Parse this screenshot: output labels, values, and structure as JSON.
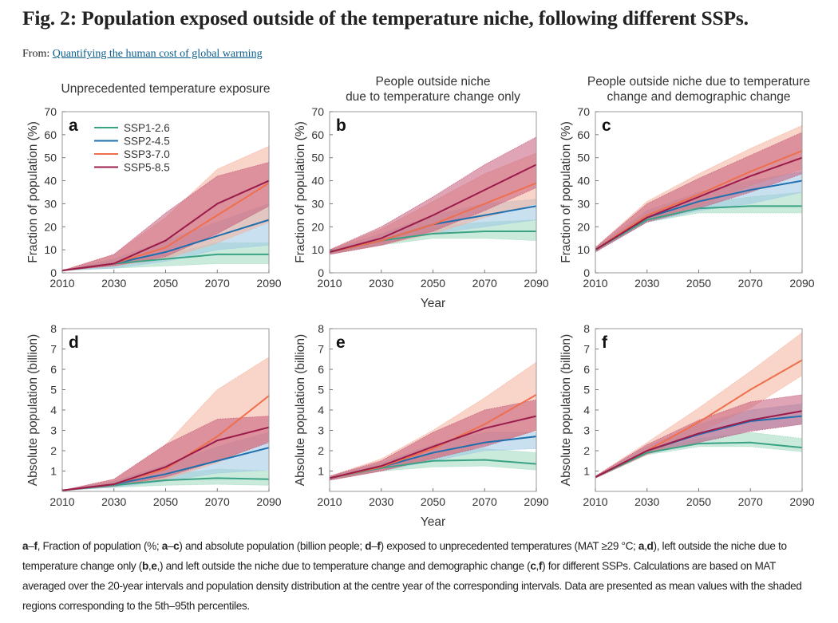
{
  "title": "Fig. 2: Population exposed outside of the temperature niche, following different SSPs.",
  "from_label": "From:",
  "from_link": "Quantifying the human cost of global warming",
  "colors": {
    "SSP1-2.6": {
      "line": "#3aa385",
      "band": "#9fd8bf"
    },
    "SSP2-4.5": {
      "line": "#1f6fae",
      "band": "#9cc6e4"
    },
    "SSP3-7.0": {
      "line": "#ef6f4d",
      "band": "#f4b09a"
    },
    "SSP5-8.5": {
      "line": "#9b1b4b",
      "band": "#c45a78"
    }
  },
  "chart_data": [
    {
      "panel": "a",
      "type": "line",
      "title": "Unprecedented temperature exposure",
      "ylabel": "Fraction of population (%)",
      "xlabel": "",
      "ylim": [
        0,
        70
      ],
      "yticks": [
        0,
        10,
        20,
        30,
        40,
        50,
        60,
        70
      ],
      "x": [
        2010,
        2030,
        2050,
        2070,
        2090
      ],
      "legend": "top-left",
      "series": [
        {
          "name": "SSP1-2.6",
          "values": [
            1,
            4,
            6,
            8,
            8
          ],
          "p5": [
            1,
            2,
            3,
            4,
            4
          ],
          "p95": [
            1,
            5,
            8,
            13,
            13
          ]
        },
        {
          "name": "SSP2-4.5",
          "values": [
            1,
            4,
            9,
            16,
            23
          ],
          "p5": [
            1,
            2,
            5,
            10,
            12
          ],
          "p95": [
            1,
            6,
            14,
            22,
            30
          ]
        },
        {
          "name": "SSP3-7.0",
          "values": [
            1,
            4,
            11,
            25,
            39
          ],
          "p5": [
            1,
            3,
            6,
            13,
            22
          ],
          "p95": [
            1,
            8,
            24,
            45,
            55
          ]
        },
        {
          "name": "SSP5-8.5",
          "values": [
            1,
            4,
            14,
            30,
            40
          ],
          "p5": [
            1,
            3,
            7,
            17,
            29
          ],
          "p95": [
            1,
            8,
            26,
            42,
            48
          ]
        }
      ]
    },
    {
      "panel": "b",
      "type": "line",
      "title": "People outside niche\ndue to temperature change only",
      "ylabel": "Fraction of population (%)",
      "xlabel": "Year",
      "ylim": [
        0,
        70
      ],
      "yticks": [
        0,
        10,
        20,
        30,
        40,
        50,
        60,
        70
      ],
      "x": [
        2010,
        2030,
        2050,
        2070,
        2090
      ],
      "series": [
        {
          "name": "SSP1-2.6",
          "values": [
            9,
            14,
            17,
            18,
            18
          ],
          "p5": [
            8,
            12,
            15,
            15,
            14
          ],
          "p95": [
            10,
            15,
            20,
            22,
            23
          ]
        },
        {
          "name": "SSP2-4.5",
          "values": [
            9,
            14,
            21,
            25,
            29
          ],
          "p5": [
            8,
            12,
            17,
            20,
            23
          ],
          "p95": [
            10,
            17,
            25,
            30,
            32
          ]
        },
        {
          "name": "SSP3-7.0",
          "values": [
            9,
            14,
            21,
            30,
            39
          ],
          "p5": [
            8,
            12,
            17,
            24,
            30
          ],
          "p95": [
            10,
            19,
            31,
            43,
            52
          ]
        },
        {
          "name": "SSP5-8.5",
          "values": [
            9,
            15,
            25,
            36,
            47
          ],
          "p5": [
            8,
            12,
            18,
            27,
            37
          ],
          "p95": [
            10,
            20,
            33,
            47,
            59
          ]
        }
      ]
    },
    {
      "panel": "c",
      "type": "line",
      "title": "People outside niche due to temperature\nchange and demographic change",
      "ylabel": "Fraction of population (%)",
      "xlabel": "",
      "ylim": [
        0,
        70
      ],
      "yticks": [
        0,
        10,
        20,
        30,
        40,
        50,
        60,
        70
      ],
      "x": [
        2010,
        2030,
        2050,
        2070,
        2090
      ],
      "series": [
        {
          "name": "SSP1-2.6",
          "values": [
            10,
            23,
            28,
            29,
            29
          ],
          "p5": [
            9,
            22,
            26,
            26,
            26
          ],
          "p95": [
            11,
            25,
            30,
            33,
            35
          ]
        },
        {
          "name": "SSP2-4.5",
          "values": [
            10,
            24,
            31,
            36,
            40
          ],
          "p5": [
            9,
            22,
            27,
            30,
            35
          ],
          "p95": [
            11,
            27,
            35,
            40,
            44
          ]
        },
        {
          "name": "SSP3-7.0",
          "values": [
            10,
            25,
            34,
            44,
            53
          ],
          "p5": [
            9,
            23,
            29,
            38,
            45
          ],
          "p95": [
            11,
            31,
            43,
            54,
            64
          ]
        },
        {
          "name": "SSP5-8.5",
          "values": [
            10,
            24,
            33,
            42,
            50
          ],
          "p5": [
            9,
            22,
            28,
            35,
            43
          ],
          "p95": [
            11,
            30,
            41,
            51,
            61
          ]
        }
      ]
    },
    {
      "panel": "d",
      "type": "line",
      "title": "",
      "ylabel": "Absolute population (billion)",
      "xlabel": "",
      "ylim": [
        0,
        8
      ],
      "yticks": [
        1,
        2,
        3,
        4,
        5,
        6,
        7,
        8
      ],
      "x": [
        2010,
        2030,
        2050,
        2070,
        2090
      ],
      "series": [
        {
          "name": "SSP1-2.6",
          "values": [
            0.05,
            0.3,
            0.55,
            0.65,
            0.6
          ],
          "p5": [
            0.05,
            0.2,
            0.3,
            0.35,
            0.3
          ],
          "p95": [
            0.05,
            0.4,
            0.8,
            1.1,
            1.0
          ]
        },
        {
          "name": "SSP2-4.5",
          "values": [
            0.05,
            0.35,
            0.85,
            1.5,
            2.15
          ],
          "p5": [
            0.05,
            0.2,
            0.5,
            0.9,
            1.05
          ],
          "p95": [
            0.05,
            0.5,
            1.3,
            2.2,
            2.9
          ]
        },
        {
          "name": "SSP3-7.0",
          "values": [
            0.05,
            0.35,
            1.1,
            2.7,
            4.7
          ],
          "p5": [
            0.05,
            0.25,
            0.6,
            1.4,
            2.5
          ],
          "p95": [
            0.05,
            0.6,
            2.3,
            5.0,
            6.6
          ]
        },
        {
          "name": "SSP5-8.5",
          "values": [
            0.05,
            0.35,
            1.2,
            2.5,
            3.15
          ],
          "p5": [
            0.05,
            0.25,
            0.7,
            1.5,
            2.4
          ],
          "p95": [
            0.05,
            0.6,
            2.3,
            3.55,
            3.7
          ]
        }
      ]
    },
    {
      "panel": "e",
      "type": "line",
      "title": "",
      "ylabel": "Absolute population (billion)",
      "xlabel": "Year",
      "ylim": [
        0,
        8
      ],
      "yticks": [
        1,
        2,
        3,
        4,
        5,
        6,
        7,
        8
      ],
      "x": [
        2010,
        2030,
        2050,
        2070,
        2090
      ],
      "series": [
        {
          "name": "SSP1-2.6",
          "values": [
            0.65,
            1.15,
            1.5,
            1.55,
            1.35
          ],
          "p5": [
            0.55,
            1.0,
            1.2,
            1.25,
            1.05
          ],
          "p95": [
            0.75,
            1.3,
            1.9,
            2.1,
            1.9
          ]
        },
        {
          "name": "SSP2-4.5",
          "values": [
            0.65,
            1.2,
            1.9,
            2.4,
            2.7
          ],
          "p5": [
            0.55,
            1.0,
            1.5,
            2.0,
            2.1
          ],
          "p95": [
            0.75,
            1.4,
            2.3,
            2.9,
            2.9
          ]
        },
        {
          "name": "SSP3-7.0",
          "values": [
            0.65,
            1.2,
            2.1,
            3.3,
            4.75
          ],
          "p5": [
            0.55,
            1.0,
            1.6,
            2.3,
            3.0
          ],
          "p95": [
            0.75,
            1.6,
            3.0,
            4.6,
            6.35
          ]
        },
        {
          "name": "SSP5-8.5",
          "values": [
            0.65,
            1.25,
            2.2,
            3.1,
            3.7
          ],
          "p5": [
            0.55,
            1.0,
            1.6,
            2.2,
            3.0
          ],
          "p95": [
            0.75,
            1.5,
            2.9,
            4.0,
            4.5
          ]
        }
      ]
    },
    {
      "panel": "f",
      "type": "line",
      "title": "",
      "ylabel": "Absolute population (billion)",
      "xlabel": "",
      "ylim": [
        0,
        8
      ],
      "yticks": [
        1,
        2,
        3,
        4,
        5,
        6,
        7,
        8
      ],
      "x": [
        2010,
        2030,
        2050,
        2070,
        2090
      ],
      "series": [
        {
          "name": "SSP1-2.6",
          "values": [
            0.7,
            1.9,
            2.35,
            2.4,
            2.15
          ],
          "p5": [
            0.65,
            1.8,
            2.2,
            2.2,
            1.95
          ],
          "p95": [
            0.75,
            2.0,
            2.6,
            2.9,
            2.6
          ]
        },
        {
          "name": "SSP2-4.5",
          "values": [
            0.7,
            2.0,
            2.8,
            3.45,
            3.7
          ],
          "p5": [
            0.65,
            1.85,
            2.4,
            3.0,
            3.3
          ],
          "p95": [
            0.75,
            2.2,
            3.3,
            4.0,
            4.3
          ]
        },
        {
          "name": "SSP3-7.0",
          "values": [
            0.7,
            2.0,
            3.4,
            5.0,
            6.45
          ],
          "p5": [
            0.65,
            1.8,
            2.9,
            4.1,
            5.7
          ],
          "p95": [
            0.75,
            2.4,
            4.1,
            5.9,
            7.8
          ]
        },
        {
          "name": "SSP5-8.5",
          "values": [
            0.7,
            2.0,
            2.85,
            3.5,
            3.95
          ],
          "p5": [
            0.65,
            1.85,
            2.4,
            2.95,
            3.3
          ],
          "p95": [
            0.75,
            2.3,
            3.5,
            4.4,
            4.75
          ]
        }
      ]
    }
  ],
  "caption": [
    {
      "t": "a",
      "b": true
    },
    {
      "t": "–",
      "b": false
    },
    {
      "t": "f",
      "b": true
    },
    {
      "t": ", Fraction of population (%; ",
      "b": false
    },
    {
      "t": "a",
      "b": true
    },
    {
      "t": "–",
      "b": false
    },
    {
      "t": "c",
      "b": true
    },
    {
      "t": ") and absolute population (billion people; ",
      "b": false
    },
    {
      "t": "d",
      "b": true
    },
    {
      "t": "–",
      "b": false
    },
    {
      "t": "f",
      "b": true
    },
    {
      "t": ") exposed to unprecedented temperatures (MAT ≥29 °C; ",
      "b": false
    },
    {
      "t": "a",
      "b": true
    },
    {
      "t": ",",
      "b": false
    },
    {
      "t": "d",
      "b": true
    },
    {
      "t": "), left outside the niche due to temperature change only (",
      "b": false
    },
    {
      "t": "b",
      "b": true
    },
    {
      "t": ",",
      "b": false
    },
    {
      "t": "e",
      "b": true
    },
    {
      "t": ",) and left outside the niche due to temperature change and demographic change (",
      "b": false
    },
    {
      "t": "c",
      "b": true
    },
    {
      "t": ",",
      "b": false
    },
    {
      "t": "f",
      "b": true
    },
    {
      "t": ") for different SSPs. Calculations are based on MAT averaged over the 20-year intervals and population density distribution at the centre year of the corresponding intervals. Data are presented as mean values with the shaded regions corresponding to the 5th–95th percentiles.",
      "b": false
    }
  ]
}
